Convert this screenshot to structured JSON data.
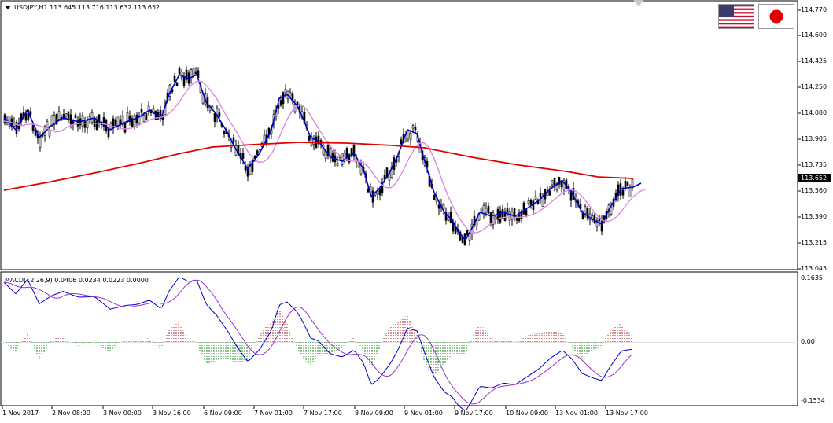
{
  "window": {
    "symbol_line": "USDJPY,H1  113.645 113.716 113.632 113.652",
    "macd_line": "MACD(12,26,9) 0.0406 0.0234 0.0223 0.0000"
  },
  "price_axis": {
    "labels": [
      "114.770",
      "114.600",
      "114.425",
      "114.250",
      "114.080",
      "113.905",
      "113.735",
      "113.560",
      "113.390",
      "113.215",
      "113.045"
    ],
    "current_price": "113.652"
  },
  "macd_axis": {
    "labels": [
      "0.1635",
      "0.00",
      "-0.1534"
    ]
  },
  "time_axis": {
    "labels": [
      "1 Nov 2017",
      "2 Nov 08:00",
      "3 Nov 00:00",
      "3 Nov 16:00",
      "6 Nov 09:00",
      "7 Nov 01:00",
      "7 Nov 17:00",
      "8 Nov 09:00",
      "9 Nov 01:00",
      "9 Nov 17:00",
      "10 Nov 09:00",
      "13 Nov 01:00",
      "13 Nov 17:00"
    ]
  },
  "flags": {
    "left": "us-flag-icon",
    "right": "japan-flag-icon"
  },
  "colors": {
    "candles": "#000000",
    "fast_ma": "#0000cc",
    "mid_ma": "#dd88dd",
    "slow_ma": "#e00000",
    "hist_pos": "#b22222",
    "hist_neg": "#228b22",
    "macd_main": "#0000cc",
    "macd_signal": "#9932cc"
  }
}
